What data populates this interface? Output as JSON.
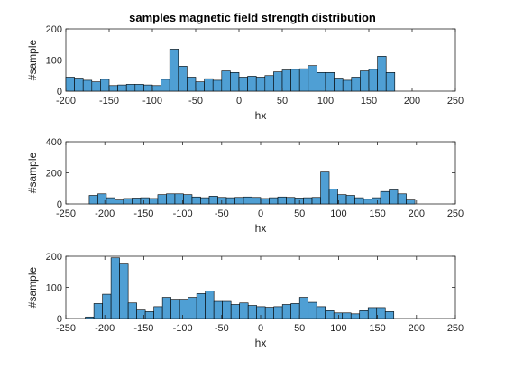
{
  "chart_data": [
    {
      "type": "bar",
      "title": "samples magnetic field strength distribution",
      "xlabel": "hx",
      "ylabel": "#sample",
      "xlim": [
        -200,
        250
      ],
      "ylim": [
        0,
        200
      ],
      "xticks": [
        -200,
        -150,
        -100,
        -50,
        0,
        50,
        100,
        150,
        200,
        250
      ],
      "yticks": [
        0,
        100,
        200
      ],
      "bin_width": 10,
      "bin_edges_start": -200,
      "values": [
        45,
        42,
        35,
        30,
        38,
        18,
        20,
        22,
        22,
        20,
        18,
        38,
        135,
        80,
        45,
        30,
        40,
        35,
        65,
        60,
        45,
        48,
        45,
        50,
        62,
        68,
        70,
        72,
        82,
        60,
        60,
        42,
        35,
        45,
        65,
        70,
        112,
        60
      ],
      "bar_color": "#4f9fd4"
    },
    {
      "type": "bar",
      "title": "",
      "xlabel": "hx",
      "ylabel": "#sample",
      "xlim": [
        -250,
        250
      ],
      "ylim": [
        0,
        400
      ],
      "xticks": [
        -250,
        -200,
        -150,
        -100,
        -50,
        0,
        50,
        100,
        150,
        200,
        250
      ],
      "yticks": [
        0,
        200,
        400
      ],
      "bin_width": 11,
      "bin_edges_start": -220,
      "values": [
        55,
        65,
        40,
        25,
        35,
        38,
        40,
        35,
        60,
        65,
        65,
        60,
        45,
        40,
        50,
        42,
        40,
        42,
        45,
        42,
        35,
        40,
        45,
        42,
        38,
        40,
        42,
        205,
        95,
        60,
        55,
        40,
        30,
        40,
        80,
        90,
        65,
        25
      ],
      "bar_color": "#4f9fd4"
    },
    {
      "type": "bar",
      "title": "",
      "xlabel": "hx",
      "ylabel": "#sample",
      "xlim": [
        -250,
        250
      ],
      "ylim": [
        0,
        200
      ],
      "xticks": [
        -250,
        -200,
        -150,
        -100,
        -50,
        0,
        50,
        100,
        150,
        200,
        250
      ],
      "yticks": [
        0,
        100,
        200
      ],
      "bin_width": 11,
      "bin_edges_start": -225,
      "values": [
        5,
        48,
        78,
        195,
        175,
        50,
        30,
        22,
        38,
        68,
        62,
        62,
        68,
        80,
        88,
        55,
        55,
        45,
        50,
        42,
        38,
        36,
        38,
        45,
        48,
        68,
        52,
        38,
        25,
        18,
        18,
        15,
        25,
        35,
        35,
        22
      ],
      "bar_color": "#4f9fd4"
    }
  ]
}
